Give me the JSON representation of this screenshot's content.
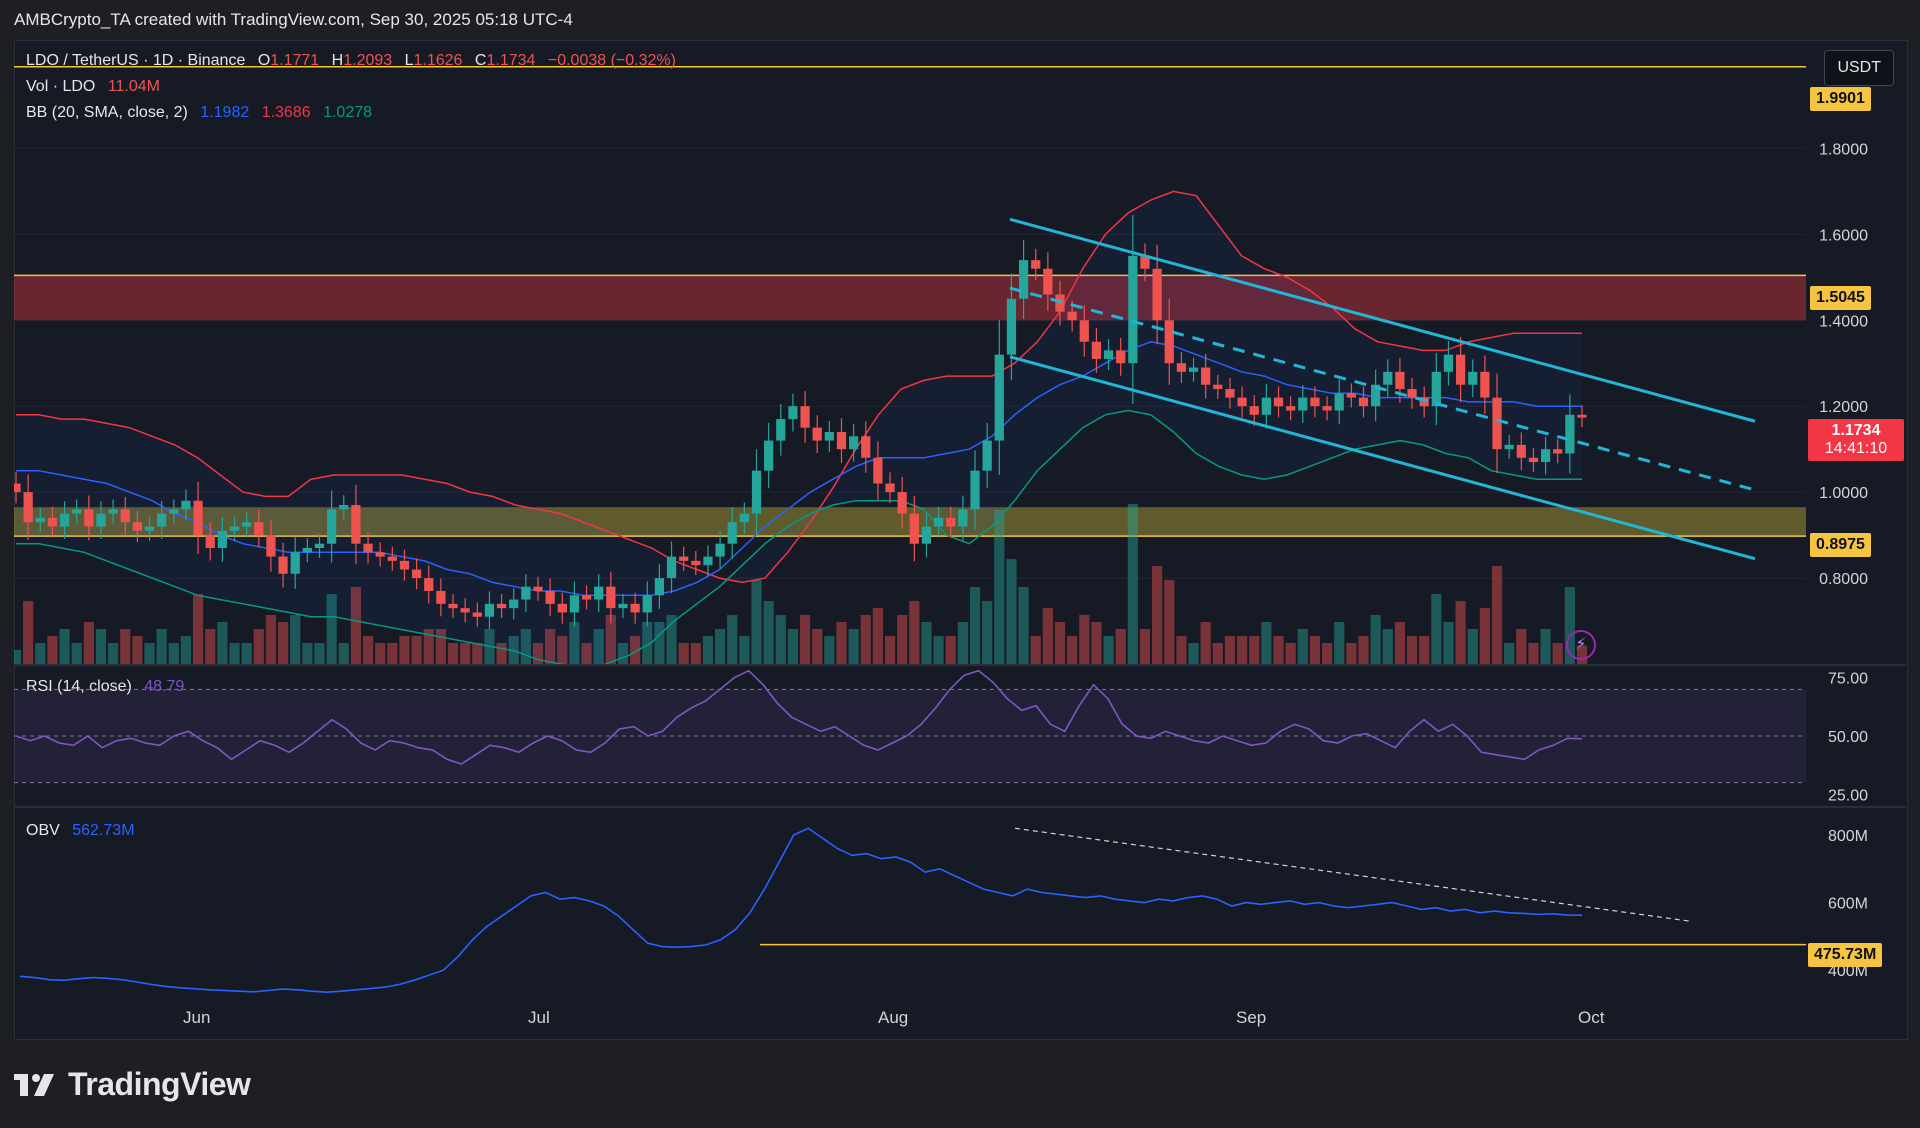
{
  "header": {
    "credit": "AMBCrypto_TA created with TradingView.com, Sep 30, 2025 05:18 UTC-4"
  },
  "legend": {
    "symbol": "LDO / TetherUS · 1D · Binance",
    "ohlc": {
      "o_label": "O",
      "o": "1.1771",
      "h_label": "H",
      "h": "1.2093",
      "l_label": "L",
      "l": "1.1626",
      "c_label": "C",
      "c": "1.1734",
      "change": "−0.0038 (−0.32%)"
    },
    "vol_label": "Vol · LDO",
    "vol_value": "11.04M",
    "bb_label": "BB (20, SMA, close, 2)",
    "bb_basis": "1.1982",
    "bb_upper": "1.3686",
    "bb_lower": "1.0278",
    "rsi_label": "RSI (14, close)",
    "rsi_value": "48.79",
    "obv_label": "OBV",
    "obv_value": "562.73M"
  },
  "currency_button": "USDT",
  "price_tags": {
    "top_line": "1.9901",
    "resistance": "1.5045",
    "current": "1.1734",
    "countdown": "14:41:10",
    "support": "0.8975",
    "obv_support": "475.73M"
  },
  "footer": {
    "brand": "TradingView"
  },
  "colors": {
    "up": "#26a69a",
    "down": "#ef5350",
    "bb_upper": "#f23645",
    "bb_basis": "#2962ff",
    "bb_lower": "#089981",
    "channel": "#22b6d6",
    "rsi": "#7e57c2",
    "obv": "#2962ff",
    "level_line": "#f5c542"
  },
  "chart_data": [
    {
      "type": "candlestick",
      "title": "LDO / TetherUS · 1D · Binance",
      "x_ticks": [
        "Jun",
        "Jul",
        "Aug",
        "Sep",
        "Oct"
      ],
      "y_ticks": [
        "0.8000",
        "1.0000",
        "1.2000",
        "1.4000",
        "1.6000",
        "1.8000"
      ],
      "ylim": [
        0.6,
        2.05
      ],
      "levels": [
        1.9901,
        1.5045,
        0.8975
      ],
      "zones": [
        {
          "from": 1.4,
          "to": 1.5045,
          "color": "#f23645"
        },
        {
          "from": 0.8975,
          "to": 0.965,
          "color": "#c9b43a"
        }
      ],
      "close": [
        1.0,
        0.93,
        0.94,
        0.92,
        0.95,
        0.96,
        0.92,
        0.95,
        0.96,
        0.93,
        0.91,
        0.92,
        0.95,
        0.96,
        0.98,
        0.9,
        0.87,
        0.91,
        0.92,
        0.93,
        0.9,
        0.85,
        0.81,
        0.86,
        0.87,
        0.88,
        0.96,
        0.97,
        0.88,
        0.86,
        0.85,
        0.84,
        0.82,
        0.8,
        0.77,
        0.74,
        0.73,
        0.72,
        0.71,
        0.74,
        0.73,
        0.75,
        0.78,
        0.77,
        0.74,
        0.72,
        0.76,
        0.75,
        0.78,
        0.73,
        0.74,
        0.72,
        0.76,
        0.8,
        0.85,
        0.84,
        0.83,
        0.85,
        0.88,
        0.93,
        0.95,
        1.05,
        1.12,
        1.17,
        1.2,
        1.15,
        1.12,
        1.14,
        1.1,
        1.13,
        1.08,
        1.02,
        1.0,
        0.95,
        0.88,
        0.92,
        0.94,
        0.92,
        0.96,
        1.05,
        1.12,
        1.32,
        1.45,
        1.54,
        1.52,
        1.46,
        1.42,
        1.4,
        1.35,
        1.31,
        1.33,
        1.3,
        1.55,
        1.52,
        1.4,
        1.3,
        1.28,
        1.29,
        1.25,
        1.24,
        1.22,
        1.2,
        1.18,
        1.22,
        1.2,
        1.19,
        1.22,
        1.2,
        1.19,
        1.23,
        1.22,
        1.2,
        1.25,
        1.28,
        1.24,
        1.22,
        1.2,
        1.28,
        1.32,
        1.25,
        1.28,
        1.22,
        1.1,
        1.11,
        1.08,
        1.07,
        1.1,
        1.09,
        1.18,
        1.1734
      ],
      "bb_upper": [
        1.18,
        1.18,
        1.17,
        1.17,
        1.16,
        1.15,
        1.13,
        1.11,
        1.08,
        1.04,
        1.0,
        0.99,
        0.99,
        1.03,
        1.04,
        1.04,
        1.04,
        1.04,
        1.03,
        1.02,
        1.0,
        0.99,
        0.97,
        0.96,
        0.95,
        0.93,
        0.91,
        0.89,
        0.87,
        0.84,
        0.82,
        0.8,
        0.79,
        0.8,
        0.86,
        0.93,
        1.01,
        1.1,
        1.18,
        1.24,
        1.26,
        1.27,
        1.27,
        1.27,
        1.3,
        1.35,
        1.42,
        1.52,
        1.6,
        1.65,
        1.68,
        1.7,
        1.69,
        1.62,
        1.55,
        1.52,
        1.5,
        1.47,
        1.43,
        1.38,
        1.35,
        1.34,
        1.33,
        1.33,
        1.35,
        1.36,
        1.37,
        1.37,
        1.37,
        1.37
      ],
      "bb_basis": [
        1.05,
        1.05,
        1.04,
        1.03,
        1.02,
        1.0,
        0.98,
        0.95,
        0.93,
        0.9,
        0.88,
        0.87,
        0.86,
        0.86,
        0.86,
        0.86,
        0.86,
        0.85,
        0.84,
        0.82,
        0.81,
        0.79,
        0.78,
        0.77,
        0.77,
        0.76,
        0.76,
        0.76,
        0.76,
        0.77,
        0.79,
        0.82,
        0.87,
        0.92,
        0.96,
        1.0,
        1.03,
        1.06,
        1.08,
        1.08,
        1.08,
        1.09,
        1.1,
        1.13,
        1.18,
        1.22,
        1.25,
        1.27,
        1.3,
        1.33,
        1.35,
        1.34,
        1.32,
        1.3,
        1.28,
        1.27,
        1.25,
        1.24,
        1.23,
        1.23,
        1.22,
        1.22,
        1.22,
        1.22,
        1.21,
        1.21,
        1.21,
        1.2,
        1.2,
        1.2
      ],
      "bb_lower": [
        0.88,
        0.88,
        0.87,
        0.86,
        0.84,
        0.82,
        0.8,
        0.78,
        0.76,
        0.75,
        0.74,
        0.73,
        0.72,
        0.71,
        0.71,
        0.7,
        0.69,
        0.68,
        0.67,
        0.66,
        0.65,
        0.64,
        0.63,
        0.61,
        0.6,
        0.59,
        0.6,
        0.62,
        0.65,
        0.7,
        0.74,
        0.78,
        0.83,
        0.88,
        0.92,
        0.95,
        0.97,
        0.98,
        0.98,
        0.98,
        0.96,
        0.9,
        0.88,
        0.92,
        0.98,
        1.05,
        1.1,
        1.15,
        1.18,
        1.19,
        1.18,
        1.14,
        1.09,
        1.06,
        1.04,
        1.03,
        1.04,
        1.06,
        1.08,
        1.1,
        1.11,
        1.12,
        1.11,
        1.09,
        1.08,
        1.05,
        1.04,
        1.03,
        1.03,
        1.03
      ]
    },
    {
      "type": "line",
      "title": "RSI (14, close)",
      "y_ticks": [
        "25.00",
        "50.00",
        "75.00"
      ],
      "ylim": [
        20,
        80
      ],
      "bands": [
        30,
        50,
        70
      ],
      "values": [
        50,
        48,
        50,
        47,
        46,
        50,
        45,
        48,
        49,
        47,
        46,
        50,
        52,
        48,
        45,
        40,
        44,
        48,
        46,
        43,
        47,
        52,
        57,
        53,
        47,
        44,
        48,
        47,
        45,
        44,
        40,
        38,
        42,
        46,
        45,
        43,
        47,
        50,
        48,
        44,
        43,
        47,
        53,
        54,
        50,
        52,
        58,
        62,
        65,
        70,
        75,
        78,
        72,
        64,
        58,
        55,
        52,
        54,
        50,
        46,
        44,
        47,
        50,
        55,
        62,
        70,
        76,
        78,
        73,
        66,
        61,
        63,
        55,
        52,
        63,
        72,
        66,
        55,
        50,
        49,
        52,
        50,
        48,
        47,
        50,
        48,
        46,
        47,
        52,
        55,
        53,
        48,
        47,
        50,
        51,
        48,
        45,
        52,
        57,
        52,
        55,
        50,
        43,
        42,
        41,
        40,
        44,
        46,
        49,
        48.79
      ]
    },
    {
      "type": "line",
      "title": "OBV",
      "y_ticks": [
        "400M",
        "600M",
        "800M"
      ],
      "ylim": [
        300,
        880
      ],
      "levels": [
        475.73
      ],
      "values": [
        382,
        378,
        372,
        370,
        375,
        378,
        376,
        372,
        365,
        358,
        352,
        348,
        345,
        342,
        340,
        338,
        336,
        340,
        344,
        342,
        338,
        335,
        338,
        342,
        346,
        350,
        358,
        370,
        385,
        400,
        440,
        490,
        530,
        560,
        590,
        620,
        630,
        610,
        615,
        605,
        590,
        560,
        520,
        480,
        470,
        468,
        470,
        475,
        490,
        520,
        570,
        640,
        720,
        800,
        820,
        790,
        760,
        740,
        745,
        730,
        735,
        720,
        690,
        700,
        680,
        660,
        640,
        630,
        620,
        640,
        630,
        625,
        620,
        615,
        620,
        610,
        605,
        600,
        610,
        605,
        615,
        620,
        610,
        590,
        600,
        595,
        600,
        605,
        595,
        600,
        590,
        585,
        590,
        595,
        600,
        590,
        580,
        585,
        575,
        580,
        570,
        575,
        570,
        568,
        565,
        567,
        563,
        562.73
      ]
    }
  ]
}
